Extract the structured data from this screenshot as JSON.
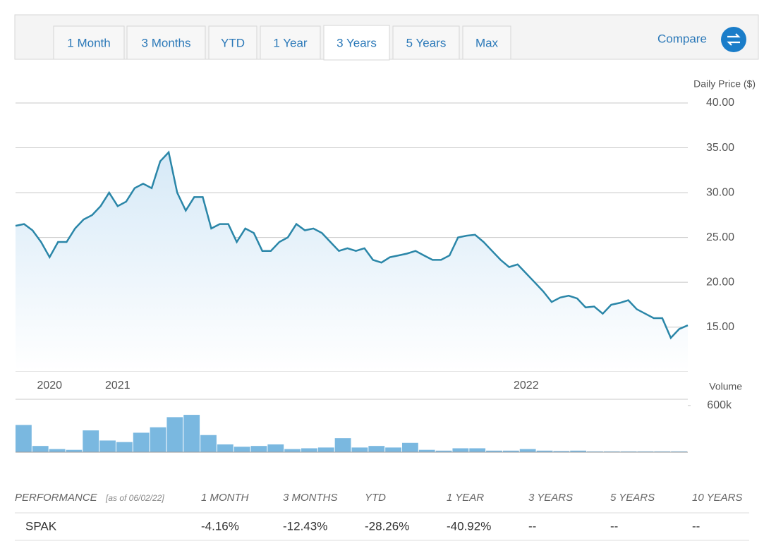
{
  "tabs": [
    "1 Month",
    "3 Months",
    "YTD",
    "1 Year",
    "3 Years",
    "5 Years",
    "Max"
  ],
  "active_tab": 4,
  "compare": "Compare",
  "chart_data": [
    {
      "type": "line",
      "y_label": "Daily Price ($)",
      "categories": [
        null,
        null,
        null,
        null,
        "2020",
        null,
        null,
        null,
        null,
        null,
        null,
        null,
        "2021",
        null,
        null,
        null,
        null,
        null,
        null,
        null,
        null,
        null,
        null,
        null,
        null,
        null,
        null,
        null,
        null,
        null,
        null,
        null,
        null,
        null,
        null,
        null,
        null,
        null,
        null,
        null,
        null,
        null,
        null,
        null,
        null,
        null,
        null,
        null,
        null,
        null,
        null,
        null,
        null,
        null,
        null,
        null,
        null,
        null,
        null,
        null,
        "2022",
        null,
        null,
        null,
        null,
        null,
        null,
        null,
        null,
        null,
        null,
        null,
        null,
        null,
        null,
        null,
        null,
        null,
        null,
        null
      ],
      "values": [
        26.3,
        26.5,
        25.8,
        24.5,
        22.8,
        24.5,
        24.5,
        26.0,
        27.0,
        27.5,
        28.5,
        30.0,
        28.5,
        29.0,
        30.5,
        31.0,
        30.5,
        33.5,
        34.5,
        30.0,
        28.0,
        29.5,
        29.5,
        26.0,
        26.5,
        26.5,
        24.5,
        26.0,
        25.5,
        23.5,
        23.5,
        24.5,
        25.0,
        26.5,
        25.8,
        26.0,
        25.5,
        24.5,
        23.5,
        23.8,
        23.5,
        23.8,
        22.5,
        22.2,
        22.8,
        23.0,
        23.2,
        23.5,
        23.0,
        22.5,
        22.5,
        23.0,
        25.0,
        25.2,
        25.3,
        24.5,
        23.5,
        22.5,
        21.7,
        22.0,
        21.0,
        20.0,
        19.0,
        17.8,
        18.3,
        18.5,
        18.2,
        17.2,
        17.3,
        16.5,
        17.5,
        17.7,
        18.0,
        17.0,
        16.5,
        16.0,
        16.0,
        13.8,
        14.8,
        15.2
      ],
      "color": "#2a86a8",
      "ylim": [
        10.1,
        40
      ],
      "yticks": [
        {
          "value": 15,
          "label": "15.00"
        },
        {
          "value": 20,
          "label": "20.00"
        },
        {
          "value": 25,
          "label": "25.00"
        },
        {
          "value": 30,
          "label": "30.00"
        },
        {
          "value": 35,
          "label": "35.00"
        },
        {
          "value": 40,
          "label": "40.00"
        }
      ],
      "grid": true
    },
    {
      "type": "bar",
      "y_label": "Volume",
      "values": [
        350000,
        80000,
        40000,
        30000,
        280000,
        150000,
        130000,
        250000,
        320000,
        450000,
        480000,
        220000,
        100000,
        70000,
        80000,
        100000,
        40000,
        50000,
        60000,
        180000,
        60000,
        80000,
        60000,
        120000,
        30000,
        20000,
        50000,
        50000,
        20000,
        20000,
        40000,
        20000,
        15000,
        20000,
        10000,
        10000,
        10000,
        10000,
        10000,
        10000
      ],
      "color": "#7ab8e0",
      "ylim": [
        0,
        680000
      ],
      "yticks": [
        {
          "value": 600000,
          "label": "600k"
        }
      ]
    }
  ],
  "performance": {
    "title": "PERFORMANCE",
    "as_of": "[as of 06/02/22]",
    "columns": [
      "1 MONTH",
      "3 MONTHS",
      "YTD",
      "1 YEAR",
      "3 YEARS",
      "5 YEARS",
      "10 YEARS"
    ],
    "rows": [
      [
        "SPAK",
        "-4.16%",
        "-12.43%",
        "-28.26%",
        "-40.92%",
        "--",
        "--",
        "--"
      ]
    ]
  }
}
